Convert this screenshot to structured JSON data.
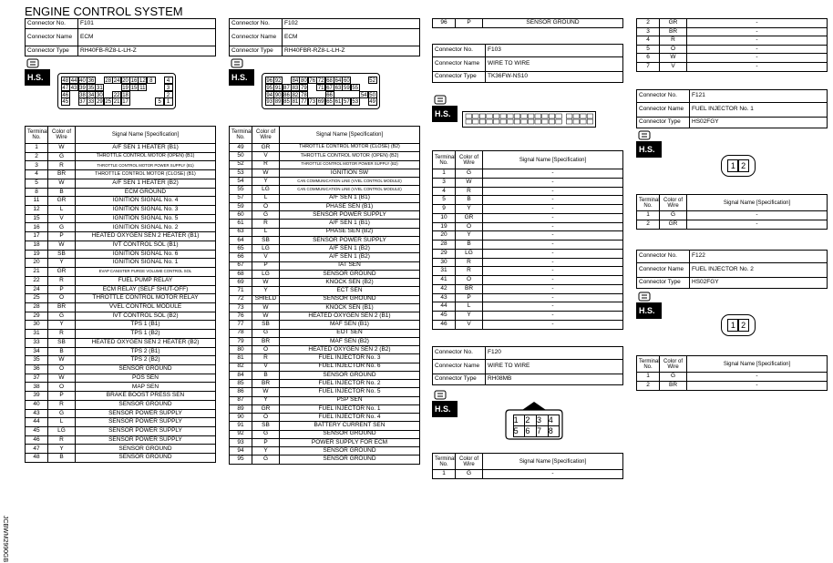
{
  "title": "ENGINE CONTROL SYSTEM",
  "figure_id": "JCBWM2990GB",
  "connectors": [
    {
      "info": [
        [
          "Connector No.",
          "F101"
        ],
        [
          "Connector Name",
          "ECM"
        ],
        [
          "Connector Type",
          "RH40FB-RZ8-L-LH-Z"
        ]
      ],
      "icon_label": "H.S.",
      "pins": [
        [
          "48",
          "44",
          "40",
          "36",
          null,
          "28",
          "24",
          "20",
          "16",
          "12",
          "8",
          null,
          "4"
        ],
        [
          "47",
          "43",
          "39",
          "35",
          "31",
          null,
          null,
          "19",
          "15",
          "11",
          null,
          null,
          "3"
        ],
        [
          "46",
          null,
          "38",
          "34",
          "30",
          null,
          "22",
          "18",
          null,
          null,
          null,
          null,
          "2"
        ],
        [
          "45",
          null,
          "37",
          "33",
          "29",
          "25",
          "21",
          "17",
          null,
          null,
          null,
          "5",
          "1"
        ]
      ],
      "table": {
        "header": [
          "Terminal No.",
          "Color of Wire",
          "Signal Name [Specification]"
        ],
        "rows": [
          [
            "1",
            "W",
            "A/F SEN 1 HEATER (B1)"
          ],
          [
            "2",
            "G",
            "THROTTLE CONTROL MOTOR (OPEN) (B1)"
          ],
          [
            "3",
            "R",
            "THROTTLE CONTROL MOTOR POWER SUPPLY (B1)"
          ],
          [
            "4",
            "BR",
            "THROTTLE CONTROL MOTOR (CLOSE) (B1)"
          ],
          [
            "5",
            "W",
            "A/F SEN 1 HEATER (B2)"
          ],
          [
            "8",
            "B",
            "ECM GROUND"
          ],
          [
            "11",
            "GR",
            "IGNITION SIGNAL No. 4"
          ],
          [
            "12",
            "L",
            "IGNITION SIGNAL No. 3"
          ],
          [
            "15",
            "V",
            "IGNITION SIGNAL No. 5"
          ],
          [
            "16",
            "G",
            "IGNITION SIGNAL No. 2"
          ],
          [
            "17",
            "P",
            "HEATED OXYGEN SEN 2 HEATER (B1)"
          ],
          [
            "18",
            "W",
            "IVT CONTROL SOL (B1)"
          ],
          [
            "19",
            "SB",
            "IGNITION SIGNAL No. 6"
          ],
          [
            "20",
            "Y",
            "IGNITION SIGNAL No. 1"
          ],
          [
            "21",
            "GR",
            "EVAP CANISTER PURGE VOLUME CONTROL SOL"
          ],
          [
            "22",
            "R",
            "FUEL PUMP RELAY"
          ],
          [
            "24",
            "P",
            "ECM RELAY (SELF SHUT-OFF)"
          ],
          [
            "25",
            "O",
            "THROTTLE CONTROL MOTOR RELAY"
          ],
          [
            "28",
            "BR",
            "VVEL CONTROL MODULE"
          ],
          [
            "29",
            "G",
            "IVT CONTROL SOL (B2)"
          ],
          [
            "30",
            "Y",
            "TPS 1 (B1)"
          ],
          [
            "31",
            "R",
            "TPS 1 (B2)"
          ],
          [
            "33",
            "SB",
            "HEATED OXYGEN SEN 2 HEATER (B2)"
          ],
          [
            "34",
            "B",
            "TPS 2 (B1)"
          ],
          [
            "35",
            "W",
            "TPS 2 (B2)"
          ],
          [
            "36",
            "O",
            "SENSOR GROUND"
          ],
          [
            "37",
            "W",
            "POS SEN"
          ],
          [
            "38",
            "O",
            "MAP SEN"
          ],
          [
            "39",
            "P",
            "BRAKE BOOST PRESS SEN"
          ],
          [
            "40",
            "R",
            "SENSOR GROUND"
          ],
          [
            "43",
            "G",
            "SENSOR POWER SUPPLY"
          ],
          [
            "44",
            "L",
            "SENSOR POWER SUPPLY"
          ],
          [
            "45",
            "LG",
            "SENSOR POWER SUPPLY"
          ],
          [
            "46",
            "R",
            "SENSOR POWER SUPPLY"
          ],
          [
            "47",
            "Y",
            "SENSOR GROUND"
          ],
          [
            "48",
            "B",
            "SENSOR GROUND"
          ]
        ]
      }
    },
    {
      "info": [
        [
          "Connector No.",
          "F102"
        ],
        [
          "Connector Name",
          "ECM"
        ],
        [
          "Connector Type",
          "RH40FBR-RZ8-L-LH-Z"
        ]
      ],
      "icon_label": "H.S.",
      "pins": [
        [
          "96",
          "92",
          null,
          "84",
          "80",
          "76",
          "72",
          "68",
          "64",
          "60",
          null,
          null,
          "52"
        ],
        [
          "95",
          "91",
          "87",
          "83",
          "79",
          null,
          "71",
          "67",
          "63",
          "59",
          "55",
          null,
          null
        ],
        [
          "94",
          "90",
          "86",
          "82",
          "78",
          null,
          null,
          "66",
          null,
          null,
          null,
          "54",
          "50"
        ],
        [
          "93",
          "89",
          "85",
          "81",
          "77",
          "73",
          "69",
          "65",
          "61",
          "57",
          "53",
          null,
          "49"
        ]
      ],
      "table": {
        "header": [
          "Terminal No.",
          "Color of Wire",
          "Signal Name [Specification]"
        ],
        "rows": [
          [
            "49",
            "GR",
            "THROTTLE CONTROL MOTOR (CLOSE) (B2)"
          ],
          [
            "50",
            "V",
            "THROTTLE CONTROL MOTOR (OPEN) (B2)"
          ],
          [
            "52",
            "R",
            "THROTTLE CONTROL MOTOR POWER SUPPLY (B2)"
          ],
          [
            "53",
            "W",
            "IGNITION SW"
          ],
          [
            "54",
            "Y",
            "CAN COMMUNICATION LINE (VVEL CONTROL MODULE)"
          ],
          [
            "55",
            "LG",
            "CAN COMMUNICATION LINE (VVEL CONTROL MODULE)"
          ],
          [
            "57",
            "L",
            "A/F SEN 1 (B1)"
          ],
          [
            "59",
            "O",
            "PHASE SEN (B1)"
          ],
          [
            "60",
            "G",
            "SENSOR POWER SUPPLY"
          ],
          [
            "61",
            "R",
            "A/F SEN 1 (B1)"
          ],
          [
            "63",
            "L",
            "PHASE SEN (B2)"
          ],
          [
            "64",
            "SB",
            "SENSOR POWER SUPPLY"
          ],
          [
            "65",
            "LG",
            "A/F SEN 1 (B2)"
          ],
          [
            "66",
            "V",
            "A/F SEN 1 (B2)"
          ],
          [
            "67",
            "P",
            "IAT SEN"
          ],
          [
            "68",
            "LG",
            "SENSOR GROUND"
          ],
          [
            "69",
            "W",
            "KNOCK SEN (B2)"
          ],
          [
            "71",
            "Y",
            "ECT SEN"
          ],
          [
            "72",
            "SHIELD",
            "SENSOR GROUND"
          ],
          [
            "73",
            "W",
            "KNOCK SEN (B1)"
          ],
          [
            "76",
            "W",
            "HEATED OXYGEN SEN 2 (B1)"
          ],
          [
            "77",
            "SB",
            "MAF SEN (B1)"
          ],
          [
            "78",
            "G",
            "EOT SEN"
          ],
          [
            "79",
            "BR",
            "MAF SEN (B2)"
          ],
          [
            "80",
            "O",
            "HEATED OXYGEN SEN 2 (B2)"
          ],
          [
            "81",
            "R",
            "FUEL INJECTOR No. 3"
          ],
          [
            "82",
            "V",
            "FUEL INJECTOR No. 6"
          ],
          [
            "84",
            "B",
            "SENSOR GROUND"
          ],
          [
            "85",
            "BR",
            "FUEL INJECTOR No. 2"
          ],
          [
            "86",
            "W",
            "FUEL INJECTOR No. 5"
          ],
          [
            "87",
            "Y",
            "PSP SEN"
          ],
          [
            "89",
            "GR",
            "FUEL INJECTOR No. 1"
          ],
          [
            "90",
            "O",
            "FUEL INJECTOR No. 4"
          ],
          [
            "91",
            "SB",
            "BATTERY CURRENT SEN"
          ],
          [
            "92",
            "G",
            "SENSOR GROUND"
          ],
          [
            "93",
            "P",
            "POWER SUPPLY FOR ECM"
          ],
          [
            "94",
            "Y",
            "SENSOR GROUND"
          ],
          [
            "95",
            "G",
            "SENSOR GROUND"
          ]
        ]
      }
    },
    {
      "info": [
        [
          "Connector No.",
          "F103"
        ],
        [
          "Connector Name",
          "WIRE TO WIRE"
        ],
        [
          "Connector Type",
          "TK36FW-NS10"
        ]
      ],
      "icon_label": "H.S.",
      "table": {
        "header": [
          "Terminal No.",
          "Color of Wire",
          "Signal Name [Specification]"
        ],
        "rows": [
          [
            "1",
            "G",
            "-"
          ],
          [
            "3",
            "W",
            "-"
          ],
          [
            "4",
            "R",
            "-"
          ],
          [
            "5",
            "B",
            "-"
          ],
          [
            "9",
            "Y",
            "-"
          ],
          [
            "10",
            "GR",
            "-"
          ],
          [
            "19",
            "O",
            "-"
          ],
          [
            "20",
            "Y",
            "-"
          ],
          [
            "28",
            "B",
            "-"
          ],
          [
            "29",
            "LG",
            "-"
          ],
          [
            "30",
            "R",
            "-"
          ],
          [
            "31",
            "R",
            "-"
          ],
          [
            "41",
            "O",
            "-"
          ],
          [
            "42",
            "BR",
            "-"
          ],
          [
            "43",
            "P",
            "-"
          ],
          [
            "44",
            "L",
            "-"
          ],
          [
            "45",
            "Y",
            "-"
          ],
          [
            "46",
            "V",
            "-"
          ]
        ]
      }
    },
    {
      "info": [
        [
          "Connector No.",
          "F120"
        ],
        [
          "Connector Name",
          "WIRE TO WIRE"
        ],
        [
          "Connector Type",
          "RH08MB"
        ]
      ],
      "icon_label": "H.S.",
      "pins": [
        [
          "1",
          "2",
          "3",
          "4"
        ],
        [
          "5",
          "6",
          "7",
          "8"
        ]
      ],
      "table": {
        "header": [
          "Terminal No.",
          "Color of Wire",
          "Signal Name [Specification]"
        ],
        "rows": [
          [
            "1",
            "G",
            "-"
          ]
        ]
      }
    },
    {
      "info": [
        [
          "Connector No.",
          "F121"
        ],
        [
          "Connector Name",
          "FUEL INJECTOR No. 1"
        ],
        [
          "Connector Type",
          "HS02FGY"
        ]
      ],
      "icon_label": "H.S.",
      "pins": [
        [
          "1",
          "2"
        ]
      ],
      "table": {
        "header": [
          "Terminal No.",
          "Color of Wire",
          "Signal Name [Specification]"
        ],
        "rows": [
          [
            "1",
            "G",
            "-"
          ],
          [
            "2",
            "GR",
            "-"
          ]
        ]
      }
    },
    {
      "info": [
        [
          "Connector No.",
          "F122"
        ],
        [
          "Connector Name",
          "FUEL INJECTOR No. 2"
        ],
        [
          "Connector Type",
          "HS02FGY"
        ]
      ],
      "icon_label": "H.S.",
      "pins": [
        [
          "1",
          "2"
        ]
      ],
      "table": {
        "header": [
          "Terminal No.",
          "Color of Wire",
          "Signal Name [Specification]"
        ],
        "rows": [
          [
            "1",
            "G",
            "-"
          ],
          [
            "2",
            "BR",
            "-"
          ]
        ]
      }
    }
  ],
  "continuations": [
    {
      "rows": [
        [
          "96",
          "P",
          "SENSOR GROUND"
        ]
      ]
    },
    {
      "rows": [
        [
          "2",
          "GR",
          "-"
        ],
        [
          "3",
          "BR",
          "-"
        ],
        [
          "4",
          "R",
          "-"
        ],
        [
          "5",
          "O",
          "-"
        ],
        [
          "6",
          "W",
          "-"
        ],
        [
          "7",
          "V",
          "-"
        ]
      ]
    }
  ]
}
